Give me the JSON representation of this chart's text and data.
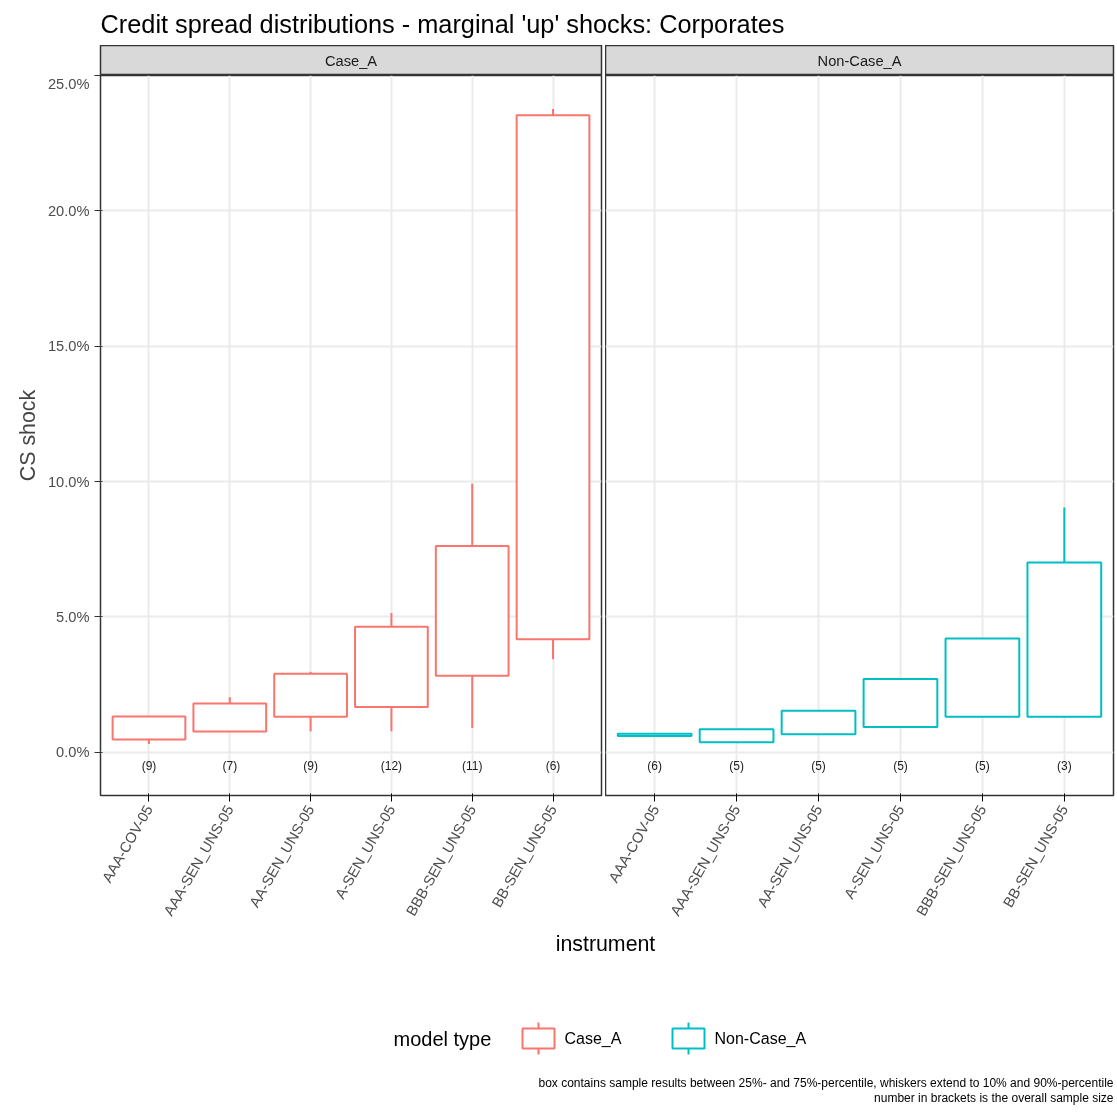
{
  "chart_data": [
    {
      "type": "box",
      "title": "Credit spread distributions - marginal 'up' shocks: Corporates",
      "subtitle": "Case_A",
      "xlabel": "instrument",
      "ylabel": "CS shock",
      "legend_title": "model type",
      "legend": "bottom",
      "grid": true,
      "categories": [
        "AAA-COV-05",
        "AAA-SEN_UNS-05",
        "AA-SEN_UNS-05",
        "A-SEN_UNS-05",
        "BBB-SEN_UNS-05",
        "BB-SEN_UNS-05"
      ],
      "ylim": [
        -1.6,
        25.0
      ],
      "yticks": [
        {
          "value": 0,
          "label": "0.0%"
        },
        {
          "value": 5,
          "label": "5.0%"
        },
        {
          "value": 10,
          "label": "10.0%"
        },
        {
          "value": 15,
          "label": "15.0%"
        },
        {
          "value": 20,
          "label": "20.0%"
        },
        {
          "value": 25,
          "label": "25.0%"
        }
      ],
      "series": [
        {
          "name": "Case_A",
          "color": "#f8766d",
          "boxes": [
            {
              "low": 0.3,
              "q1": 0.47,
              "q3": 1.32,
              "high": 1.34
            },
            {
              "low": 0.76,
              "q1": 0.76,
              "q3": 1.8,
              "high": 2.03
            },
            {
              "low": 0.77,
              "q1": 1.31,
              "q3": 2.9,
              "high": 2.97
            },
            {
              "low": 0.77,
              "q1": 1.67,
              "q3": 4.63,
              "high": 5.14
            },
            {
              "low": 0.89,
              "q1": 2.82,
              "q3": 7.62,
              "high": 9.92
            },
            {
              "low": 3.43,
              "q1": 4.17,
              "q3": 23.53,
              "high": 23.76
            }
          ],
          "value_labels": [
            "(9)",
            "(7)",
            "(9)",
            "(12)",
            "(11)",
            "(6)"
          ]
        }
      ]
    },
    {
      "type": "box",
      "subtitle": "Non-Case_A",
      "grid": true,
      "tick_labels": "x",
      "categories": [
        "AAA-COV-05",
        "AAA-SEN_UNS-05",
        "AA-SEN_UNS-05",
        "A-SEN_UNS-05",
        "BBB-SEN_UNS-05",
        "BB-SEN_UNS-05"
      ],
      "ylim": [
        -1.6,
        25.0
      ],
      "yticks": [
        0,
        5,
        10,
        15,
        20,
        25
      ],
      "series": [
        {
          "name": "Non-Case_A",
          "color": "#00bfc4",
          "boxes": [
            {
              "low": 0.6,
              "q1": 0.6,
              "q3": 0.68,
              "high": 0.68
            },
            {
              "low": 0.37,
              "q1": 0.37,
              "q3": 0.85,
              "high": 0.85
            },
            {
              "low": 0.66,
              "q1": 0.66,
              "q3": 1.53,
              "high": 1.53
            },
            {
              "low": 0.93,
              "q1": 0.93,
              "q3": 2.7,
              "high": 2.7
            },
            {
              "low": 1.31,
              "q1": 1.31,
              "q3": 4.2,
              "high": 4.2
            },
            {
              "low": 1.31,
              "q1": 1.31,
              "q3": 7.01,
              "high": 9.04
            }
          ],
          "value_labels": [
            "(6)",
            "(5)",
            "(5)",
            "(5)",
            "(5)",
            "(3)"
          ]
        }
      ],
      "annotations": [
        "box contains sample results between 25%- and 75%-percentile, whiskers extend to 10% and 90%-percentile",
        "number in brackets is the overall sample size"
      ]
    }
  ]
}
